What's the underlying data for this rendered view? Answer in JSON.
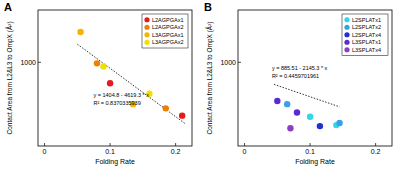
{
  "chart_data": [
    {
      "type": "scatter",
      "title": "A",
      "x_label": "Folding Rate",
      "y_label": "Contact Area from L2&L3 to OmpX (Å²)",
      "xlim": [
        -0.01,
        0.225
      ],
      "ylim": [
        200,
        1500
      ],
      "xticks": [
        0,
        0.1,
        0.2
      ],
      "yticks": [
        1000
      ],
      "legend": "upper right",
      "series": [
        {
          "name": "L2AGPGAx1",
          "color": "#e41a1c",
          "marker": "circle",
          "x": [
            0.1,
            0.21
          ],
          "values": [
            800,
            490
          ]
        },
        {
          "name": "L2AGPGAx2",
          "color": "#f07f00",
          "marker": "circle",
          "x": [
            0.08,
            0.185
          ],
          "values": [
            990,
            560
          ]
        },
        {
          "name": "L3AGPGAx1",
          "color": "#f5b400",
          "marker": "circle",
          "x": [
            0.055,
            0.135
          ],
          "values": [
            1290,
            600
          ]
        },
        {
          "name": "L3AGPGAx2",
          "color": "#f0e000",
          "marker": "circle",
          "x": [
            0.09,
            0.16
          ],
          "values": [
            960,
            700
          ]
        }
      ],
      "trendline": {
        "color": "#333333",
        "line_style": "dotted",
        "x": [
          0.05,
          0.215
        ],
        "values": [
          1173.8,
          411.6
        ]
      },
      "annotations": [
        "y = 1404.8 - 4619.3 * x",
        "R² = 0.8370335939"
      ]
    },
    {
      "type": "scatter",
      "title": "B",
      "x_label": "Folding Rate",
      "y_label": "Contact Area from L2&L3 to OmpX (Å²)",
      "xlim": [
        -0.01,
        0.225
      ],
      "ylim": [
        200,
        1500
      ],
      "xticks": [
        0,
        0.1,
        0.2
      ],
      "yticks": [
        1000
      ],
      "legend": "upper right",
      "series": [
        {
          "name": "L2SPLATx1",
          "color": "#33d6e6",
          "marker": "circle",
          "x": [
            0.1,
            0.14
          ],
          "values": [
            480,
            400
          ]
        },
        {
          "name": "L2SPLATx2",
          "color": "#3a9fe8",
          "marker": "circle",
          "x": [
            0.065,
            0.145
          ],
          "values": [
            600,
            420
          ]
        },
        {
          "name": "L2SPLATx4",
          "color": "#1f2fd1",
          "marker": "circle",
          "x": [
            0.115
          ],
          "values": [
            390
          ]
        },
        {
          "name": "L3SPLATx1",
          "color": "#5a2bd1",
          "marker": "circle",
          "x": [
            0.05,
            0.08
          ],
          "values": [
            630,
            520
          ]
        },
        {
          "name": "L3SPLATx4",
          "color": "#8a3fbf",
          "marker": "circle",
          "x": [
            0.07
          ],
          "values": [
            370
          ]
        }
      ],
      "trendline": {
        "color": "#333333",
        "line_style": "dotted",
        "x": [
          0.045,
          0.145
        ],
        "values": [
          789,
          574.4
        ]
      },
      "annotations": [
        "y = 885.51 - 2145.3 * x",
        "R² = 0.4459701961"
      ]
    }
  ]
}
